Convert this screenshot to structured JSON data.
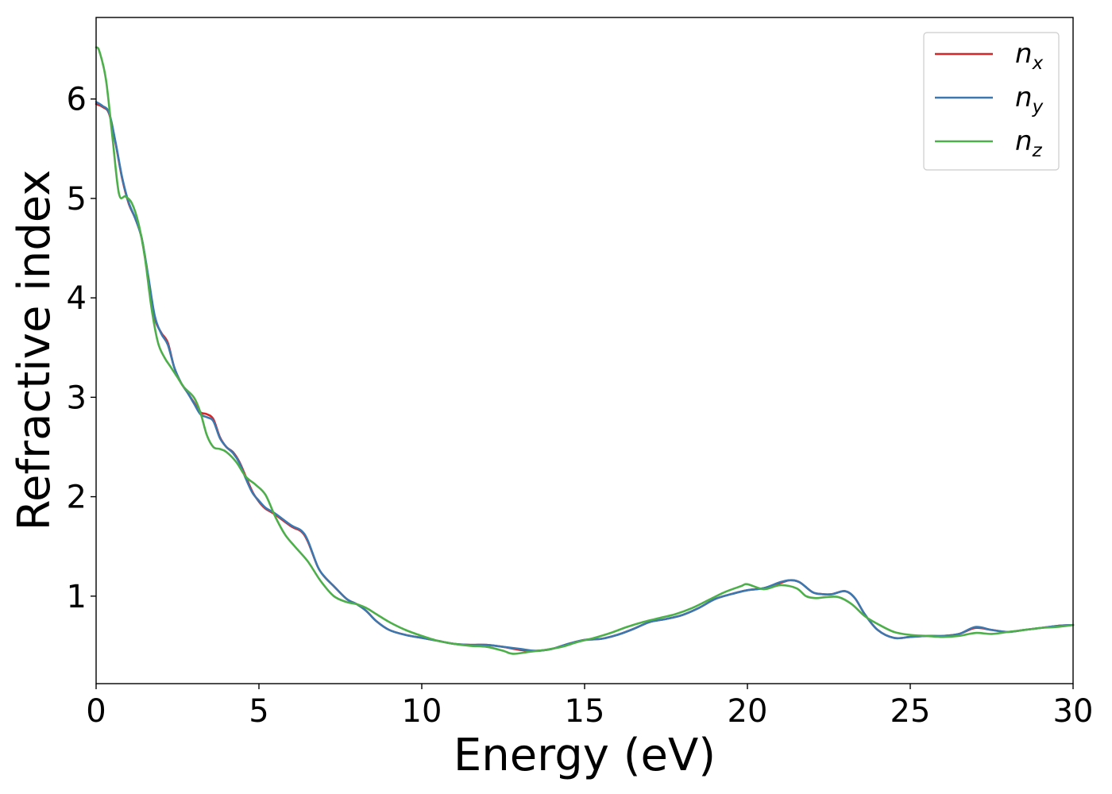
{
  "chart_data": {
    "type": "line",
    "title": "",
    "xlabel": "Energy (eV)",
    "ylabel": "Refractive index",
    "xlim": [
      0,
      30
    ],
    "ylim": [
      0.12,
      6.82
    ],
    "xticks": [
      0,
      5,
      10,
      15,
      20,
      25,
      30
    ],
    "yticks": [
      1,
      2,
      3,
      4,
      5,
      6
    ],
    "grid": false,
    "legend_position": "top-right",
    "series": [
      {
        "name": "n_x",
        "label_base": "n",
        "label_sub": "x",
        "color": "#d62728",
        "x": [
          0,
          0.2,
          0.4,
          0.6,
          0.8,
          1.0,
          1.2,
          1.4,
          1.6,
          1.8,
          2.0,
          2.2,
          2.4,
          2.6,
          2.8,
          3.0,
          3.2,
          3.4,
          3.6,
          3.8,
          4.0,
          4.2,
          4.4,
          4.6,
          4.8,
          5.0,
          5.2,
          5.5,
          6.0,
          6.3,
          6.5,
          6.8,
          7.0,
          7.3,
          7.7,
          8.0,
          8.3,
          8.6,
          9.0,
          9.5,
          10.0,
          10.5,
          11.0,
          11.5,
          12.0,
          12.5,
          13.0,
          13.5,
          14.0,
          14.5,
          15.0,
          15.5,
          16.0,
          16.5,
          17.0,
          17.5,
          18.0,
          18.5,
          19.0,
          19.5,
          20.0,
          20.5,
          21.0,
          21.3,
          21.6,
          22.0,
          22.3,
          22.6,
          23.0,
          23.3,
          23.6,
          24.0,
          24.5,
          25.0,
          25.5,
          26.0,
          26.5,
          27.0,
          27.5,
          28.0,
          28.5,
          29.0,
          29.5,
          30.0
        ],
        "values": [
          5.95,
          5.92,
          5.85,
          5.55,
          5.2,
          4.95,
          4.8,
          4.6,
          4.2,
          3.8,
          3.65,
          3.55,
          3.3,
          3.15,
          3.05,
          2.95,
          2.85,
          2.83,
          2.78,
          2.6,
          2.5,
          2.45,
          2.35,
          2.2,
          2.05,
          1.95,
          1.88,
          1.82,
          1.7,
          1.65,
          1.55,
          1.3,
          1.2,
          1.1,
          0.97,
          0.92,
          0.85,
          0.75,
          0.66,
          0.61,
          0.58,
          0.55,
          0.52,
          0.51,
          0.51,
          0.49,
          0.46,
          0.45,
          0.47,
          0.52,
          0.56,
          0.57,
          0.61,
          0.67,
          0.74,
          0.77,
          0.81,
          0.88,
          0.97,
          1.02,
          1.06,
          1.08,
          1.13,
          1.16,
          1.14,
          1.04,
          1.02,
          1.02,
          1.05,
          0.98,
          0.82,
          0.66,
          0.58,
          0.59,
          0.6,
          0.6,
          0.62,
          0.68,
          0.66,
          0.64,
          0.66,
          0.68,
          0.7,
          0.71
        ]
      },
      {
        "name": "n_y",
        "label_base": "n",
        "label_sub": "y",
        "color": "#3b78b0",
        "x": [
          0,
          0.2,
          0.4,
          0.6,
          0.8,
          1.0,
          1.2,
          1.4,
          1.6,
          1.8,
          2.0,
          2.2,
          2.4,
          2.6,
          2.8,
          3.0,
          3.2,
          3.4,
          3.6,
          3.8,
          4.0,
          4.2,
          4.4,
          4.6,
          4.8,
          5.0,
          5.2,
          5.5,
          6.0,
          6.3,
          6.5,
          6.8,
          7.0,
          7.3,
          7.7,
          8.0,
          8.3,
          8.6,
          9.0,
          9.5,
          10.0,
          10.5,
          11.0,
          11.5,
          12.0,
          12.5,
          13.0,
          13.5,
          14.0,
          14.5,
          15.0,
          15.5,
          16.0,
          16.5,
          17.0,
          17.5,
          18.0,
          18.5,
          19.0,
          19.5,
          20.0,
          20.5,
          21.0,
          21.3,
          21.6,
          22.0,
          22.3,
          22.6,
          23.0,
          23.3,
          23.6,
          24.0,
          24.5,
          25.0,
          25.5,
          26.0,
          26.5,
          27.0,
          27.5,
          28.0,
          28.5,
          29.0,
          29.5,
          30.0
        ],
        "values": [
          5.97,
          5.93,
          5.86,
          5.56,
          5.21,
          4.96,
          4.8,
          4.6,
          4.22,
          3.82,
          3.64,
          3.53,
          3.3,
          3.15,
          3.05,
          2.94,
          2.83,
          2.8,
          2.76,
          2.59,
          2.5,
          2.44,
          2.34,
          2.18,
          2.04,
          1.96,
          1.89,
          1.83,
          1.71,
          1.66,
          1.56,
          1.3,
          1.2,
          1.1,
          0.97,
          0.92,
          0.85,
          0.75,
          0.66,
          0.61,
          0.58,
          0.55,
          0.52,
          0.51,
          0.51,
          0.49,
          0.47,
          0.45,
          0.47,
          0.52,
          0.56,
          0.57,
          0.61,
          0.67,
          0.74,
          0.77,
          0.81,
          0.88,
          0.97,
          1.02,
          1.06,
          1.08,
          1.14,
          1.16,
          1.14,
          1.04,
          1.02,
          1.02,
          1.05,
          0.98,
          0.82,
          0.66,
          0.58,
          0.59,
          0.6,
          0.6,
          0.62,
          0.69,
          0.66,
          0.64,
          0.66,
          0.68,
          0.7,
          0.71
        ]
      },
      {
        "name": "n_z",
        "label_base": "n",
        "label_sub": "z",
        "color": "#4daf4a",
        "x": [
          0,
          0.1,
          0.3,
          0.5,
          0.7,
          0.9,
          1.1,
          1.3,
          1.5,
          1.7,
          1.9,
          2.1,
          2.3,
          2.5,
          2.7,
          3.0,
          3.2,
          3.4,
          3.6,
          3.8,
          4.0,
          4.3,
          4.6,
          4.9,
          5.2,
          5.5,
          5.8,
          6.1,
          6.5,
          6.9,
          7.3,
          7.7,
          8.0,
          8.3,
          8.6,
          9.0,
          9.5,
          10.0,
          10.5,
          11.0,
          11.5,
          12.0,
          12.5,
          12.8,
          13.3,
          13.8,
          14.3,
          14.8,
          15.3,
          15.8,
          16.3,
          16.8,
          17.3,
          17.8,
          18.3,
          18.8,
          19.3,
          19.8,
          20.0,
          20.5,
          21.0,
          21.5,
          21.8,
          22.1,
          22.4,
          22.8,
          23.2,
          23.6,
          24.0,
          24.5,
          25.0,
          25.5,
          26.0,
          26.5,
          27.0,
          27.5,
          28.0,
          28.5,
          29.0,
          29.5,
          30.0
        ],
        "values": [
          6.52,
          6.48,
          6.2,
          5.62,
          5.05,
          5.02,
          4.95,
          4.75,
          4.4,
          3.9,
          3.55,
          3.4,
          3.3,
          3.2,
          3.1,
          3.0,
          2.85,
          2.62,
          2.5,
          2.48,
          2.45,
          2.35,
          2.2,
          2.12,
          2.02,
          1.8,
          1.62,
          1.5,
          1.35,
          1.15,
          1.0,
          0.94,
          0.92,
          0.88,
          0.82,
          0.74,
          0.66,
          0.6,
          0.55,
          0.52,
          0.5,
          0.49,
          0.45,
          0.42,
          0.44,
          0.46,
          0.49,
          0.54,
          0.58,
          0.63,
          0.69,
          0.74,
          0.78,
          0.82,
          0.88,
          0.96,
          1.04,
          1.1,
          1.12,
          1.07,
          1.11,
          1.08,
          1.0,
          0.98,
          0.99,
          0.99,
          0.92,
          0.8,
          0.72,
          0.64,
          0.61,
          0.6,
          0.59,
          0.6,
          0.63,
          0.62,
          0.64,
          0.66,
          0.68,
          0.69,
          0.71
        ]
      }
    ]
  }
}
